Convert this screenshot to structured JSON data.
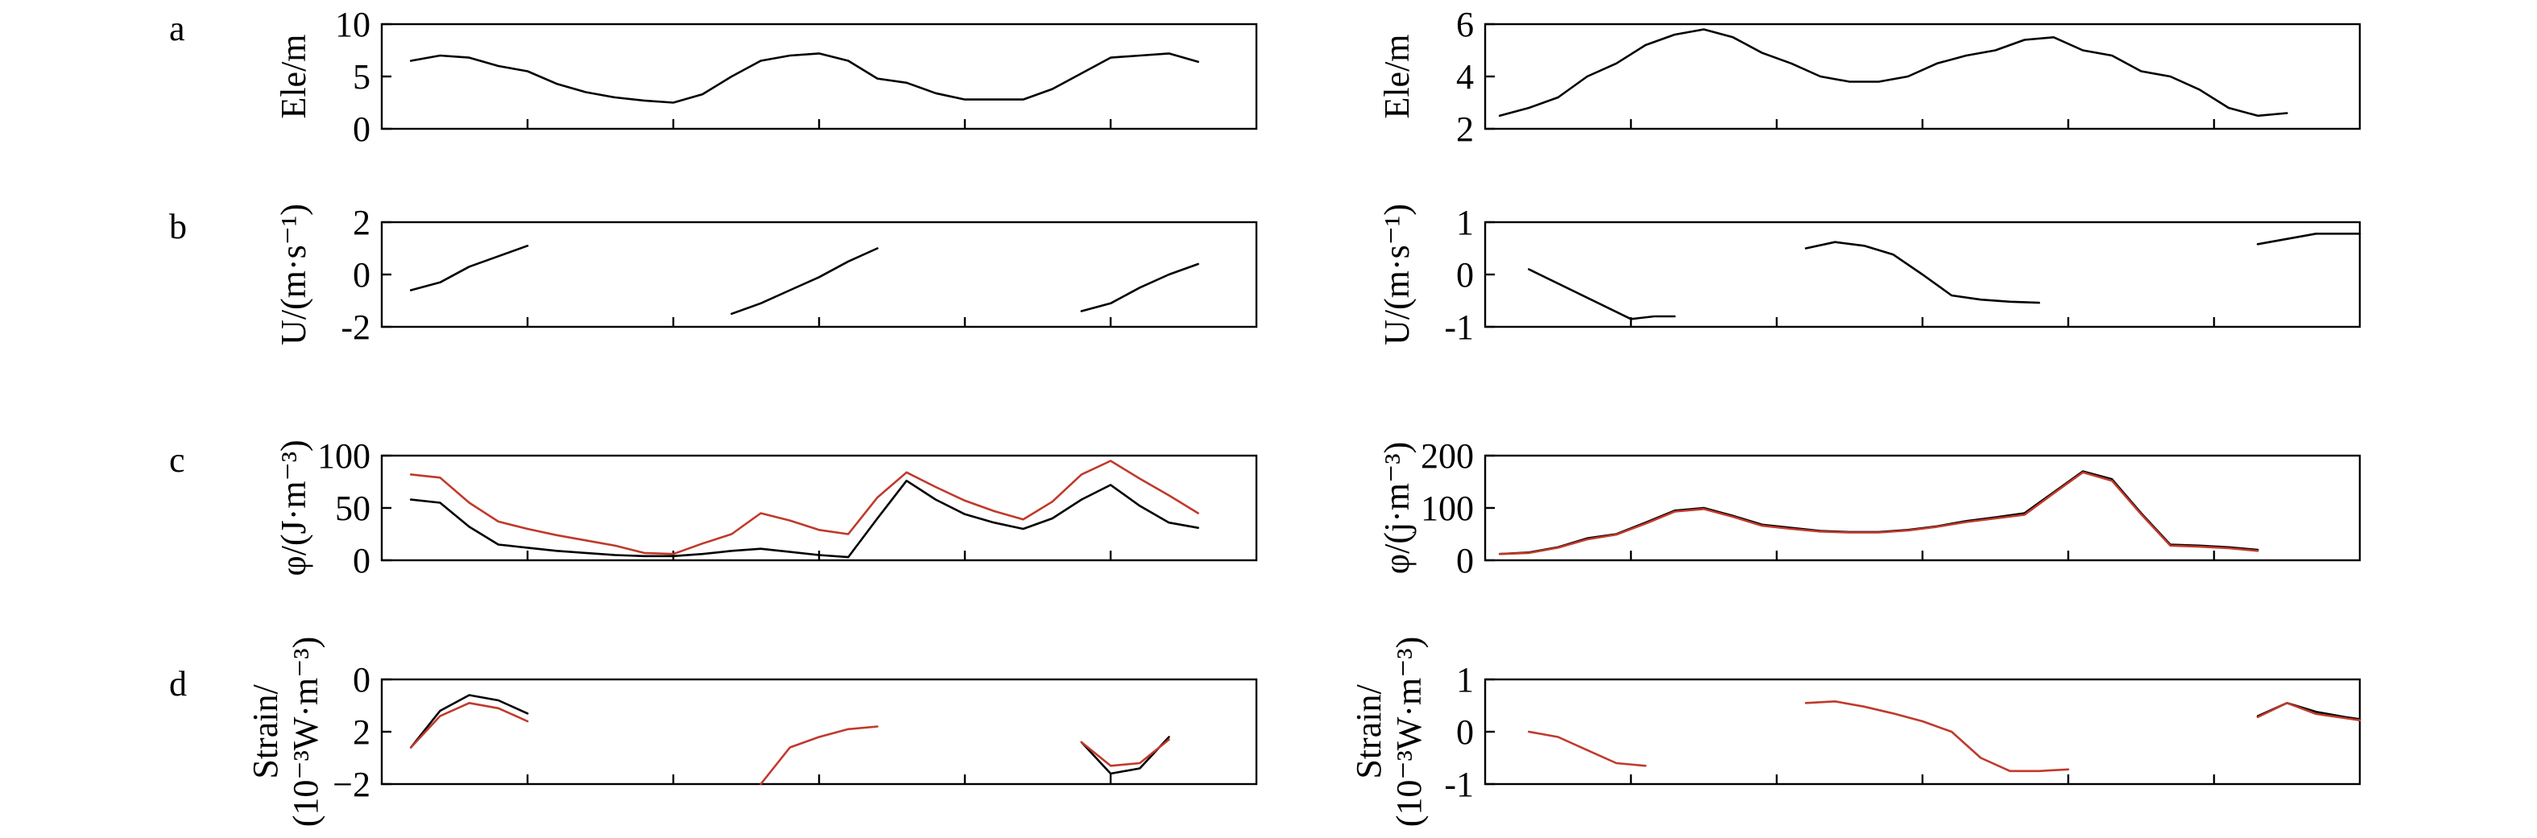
{
  "colors": {
    "black": "#000000",
    "red": "#c0392b"
  },
  "panel_letters": [
    "a",
    "b",
    "c",
    "d"
  ],
  "chart_data": [
    {
      "type": "line",
      "row": 0,
      "col": 0,
      "letter": "a",
      "ylabel": "Ele/m",
      "ylim": [
        0,
        10
      ],
      "yticks": [
        0,
        5,
        10
      ],
      "xlim": [
        0,
        30
      ],
      "grid": false,
      "series": [
        {
          "color": "black",
          "x": [
            1,
            2,
            3,
            4,
            5,
            6,
            7,
            8,
            9,
            10,
            11,
            12,
            13,
            14,
            15,
            16,
            17,
            18,
            19,
            20,
            21,
            22,
            23,
            24,
            25,
            26,
            27,
            28
          ],
          "y": [
            6.5,
            7.0,
            6.8,
            6.0,
            5.5,
            4.3,
            3.5,
            3.0,
            2.7,
            2.5,
            3.3,
            5.0,
            6.5,
            7.0,
            7.2,
            6.5,
            4.8,
            4.4,
            3.4,
            2.8,
            2.8,
            2.8,
            3.8,
            5.3,
            6.8,
            7.0,
            7.2,
            6.4
          ]
        }
      ]
    },
    {
      "type": "line",
      "row": 0,
      "col": 1,
      "letter": "",
      "ylabel": "Ele/m",
      "ylim": [
        2,
        6
      ],
      "yticks": [
        2,
        4,
        6
      ],
      "xlim": [
        0,
        30
      ],
      "grid": false,
      "series": [
        {
          "color": "black",
          "x": [
            0.5,
            1.5,
            2.5,
            3.5,
            4.5,
            5.5,
            6.5,
            7.5,
            8.5,
            9.5,
            10.5,
            11.5,
            12.5,
            13.5,
            14.5,
            15.5,
            16.5,
            17.5,
            18.5,
            19.5,
            20.5,
            21.5,
            22.5,
            23.5,
            24.5,
            25.5,
            26.5,
            27.5,
            28.5
          ],
          "y": [
            2.5,
            2.8,
            3.2,
            4.0,
            4.5,
            5.2,
            5.6,
            5.8,
            5.5,
            4.9,
            4.5,
            4.0,
            3.8,
            3.8,
            4.0,
            4.5,
            4.8,
            5.0,
            5.4,
            5.5,
            5.0,
            4.8,
            4.2,
            4.0,
            3.5,
            2.8,
            2.5,
            2.6,
            null
          ]
        }
      ]
    },
    {
      "type": "line",
      "row": 1,
      "col": 0,
      "letter": "b",
      "ylabel": "U/(m·s⁻¹)",
      "ylim": [
        -2,
        2
      ],
      "yticks": [
        -2,
        0,
        2
      ],
      "xlim": [
        0,
        30
      ],
      "grid": false,
      "series": [
        {
          "color": "black",
          "x": [
            1,
            2,
            3,
            4,
            5
          ],
          "y": [
            -0.6,
            -0.3,
            0.3,
            0.7,
            1.1
          ]
        },
        {
          "color": "black",
          "x": [
            12,
            13,
            14,
            15,
            16,
            17
          ],
          "y": [
            -1.5,
            -1.1,
            -0.6,
            -0.1,
            0.5,
            1.0
          ]
        },
        {
          "color": "black",
          "x": [
            24,
            25,
            26,
            27,
            28
          ],
          "y": [
            -1.4,
            -1.1,
            -0.5,
            0.0,
            0.4
          ]
        }
      ]
    },
    {
      "type": "line",
      "row": 1,
      "col": 1,
      "letter": "",
      "ylabel": "U/(m·s⁻¹)",
      "ylim": [
        -1,
        1
      ],
      "yticks": [
        -1,
        0,
        1
      ],
      "xlim": [
        0,
        30
      ],
      "grid": false,
      "series": [
        {
          "color": "black",
          "x": [
            1.5,
            5,
            5.8,
            6.5
          ],
          "y": [
            0.1,
            -0.85,
            -0.8,
            -0.8
          ]
        },
        {
          "color": "black",
          "x": [
            11,
            12,
            13,
            14,
            15,
            16,
            17,
            18,
            19,
            20
          ],
          "y": [
            0.5,
            0.62,
            0.55,
            0.38,
            0.0,
            -0.4,
            -0.48,
            -0.52,
            -0.54,
            null
          ]
        },
        {
          "color": "black",
          "x": [
            26.5,
            27.5,
            28.5,
            29.5,
            30
          ],
          "y": [
            0.58,
            0.68,
            0.78,
            0.78,
            0.78
          ]
        }
      ]
    },
    {
      "type": "line",
      "row": 2,
      "col": 0,
      "letter": "c",
      "ylabel": "φ/(J·m⁻³)",
      "ylim": [
        0,
        100
      ],
      "yticks": [
        0,
        50,
        100
      ],
      "xlim": [
        0,
        30
      ],
      "grid": false,
      "series": [
        {
          "color": "black",
          "x": [
            1,
            2,
            3,
            4,
            5,
            6,
            7,
            8,
            9,
            10,
            11,
            12,
            13,
            14,
            15,
            16,
            17,
            18,
            19,
            20,
            21,
            22,
            23,
            24,
            25,
            26,
            27,
            28
          ],
          "y": [
            58,
            55,
            32,
            15,
            12,
            9,
            7,
            5,
            4,
            4,
            6,
            9,
            11,
            8,
            5,
            3,
            40,
            76,
            58,
            44,
            36,
            30,
            40,
            58,
            72,
            52,
            36,
            31
          ]
        },
        {
          "color": "red",
          "x": [
            1,
            2,
            3,
            4,
            5,
            6,
            7,
            8,
            9,
            10,
            11,
            12,
            13,
            14,
            15,
            16,
            17,
            18,
            19,
            20,
            21,
            22,
            23,
            24,
            25,
            26,
            27,
            28
          ],
          "y": [
            82,
            79,
            55,
            37,
            30,
            24,
            19,
            14,
            7,
            6,
            16,
            25,
            45,
            38,
            29,
            25,
            60,
            84,
            70,
            57,
            47,
            39,
            56,
            82,
            95,
            78,
            62,
            45
          ]
        }
      ]
    },
    {
      "type": "line",
      "row": 2,
      "col": 1,
      "letter": "",
      "ylabel": "φ/(j·m⁻³)",
      "ylim": [
        0,
        200
      ],
      "yticks": [
        0,
        100,
        200
      ],
      "xlim": [
        0,
        30
      ],
      "grid": false,
      "series": [
        {
          "color": "black",
          "x": [
            0.5,
            1.5,
            2.5,
            3.5,
            4.5,
            5.5,
            6.5,
            7.5,
            8.5,
            9.5,
            10.5,
            11.5,
            12.5,
            13.5,
            14.5,
            15.5,
            16.5,
            17.5,
            18.5,
            19.5,
            20.5,
            21.5,
            22.5,
            23.5,
            24.5,
            25.5,
            26.5
          ],
          "y": [
            12,
            15,
            25,
            42,
            50,
            72,
            95,
            100,
            85,
            68,
            62,
            56,
            54,
            54,
            58,
            65,
            75,
            82,
            90,
            130,
            170,
            155,
            90,
            30,
            28,
            25,
            20
          ]
        },
        {
          "color": "red",
          "x": [
            0.5,
            1.5,
            2.5,
            3.5,
            4.5,
            5.5,
            6.5,
            7.5,
            8.5,
            9.5,
            10.5,
            11.5,
            12.5,
            13.5,
            14.5,
            15.5,
            16.5,
            17.5,
            18.5,
            19.5,
            20.5,
            21.5,
            22.5,
            23.5,
            24.5,
            25.5,
            26.5
          ],
          "y": [
            12,
            14,
            24,
            40,
            49,
            70,
            93,
            98,
            83,
            66,
            60,
            55,
            53,
            53,
            57,
            64,
            73,
            80,
            87,
            128,
            168,
            152,
            88,
            28,
            26,
            23,
            18
          ]
        }
      ]
    },
    {
      "type": "line",
      "row": 3,
      "col": 0,
      "letter": "d",
      "ylabel": "Strain/ (10⁻³W·m⁻³)",
      "ylim": [
        -2,
        0
      ],
      "yticks": [
        0,
        2,
        -2
      ],
      "ytick_labels": [
        "0",
        "2",
        "−2"
      ],
      "xlim": [
        0,
        30
      ],
      "grid": false,
      "series": [
        {
          "color": "black",
          "x": [
            1,
            2,
            3,
            4,
            5
          ],
          "y": [
            -1.3,
            -0.6,
            -0.3,
            -0.4,
            -0.65
          ]
        },
        {
          "color": "red",
          "x": [
            1,
            2,
            3,
            4,
            5
          ],
          "y": [
            -1.3,
            -0.7,
            -0.45,
            -0.55,
            -0.8
          ]
        },
        {
          "color": "red",
          "x": [
            13,
            14,
            15,
            16,
            17
          ],
          "y": [
            -2,
            -1.3,
            -1.1,
            -0.95,
            -0.9
          ]
        },
        {
          "color": "black",
          "x": [
            24,
            25,
            26,
            27
          ],
          "y": [
            -1.2,
            -1.8,
            -1.7,
            -1.1
          ]
        },
        {
          "color": "red",
          "x": [
            24,
            25,
            26,
            27
          ],
          "y": [
            -1.2,
            -1.65,
            -1.6,
            -1.15
          ]
        }
      ]
    },
    {
      "type": "line",
      "row": 3,
      "col": 1,
      "letter": "",
      "ylabel": "Strain/ (10⁻³W·m⁻³)",
      "ylim": [
        -1,
        1
      ],
      "yticks": [
        1,
        0,
        -1
      ],
      "xlim": [
        0,
        30
      ],
      "grid": false,
      "series": [
        {
          "color": "red",
          "x": [
            1.5,
            2.5,
            3.5,
            4.5,
            5.5,
            6.5
          ],
          "y": [
            0.0,
            -0.1,
            -0.35,
            -0.6,
            -0.65,
            null
          ]
        },
        {
          "color": "red",
          "x": [
            11,
            12,
            13,
            14,
            15,
            16,
            17,
            18,
            19,
            20
          ],
          "y": [
            0.55,
            0.58,
            0.48,
            0.35,
            0.2,
            0.0,
            -0.5,
            -0.75,
            -0.75,
            -0.72
          ]
        },
        {
          "color": "black",
          "x": [
            26.5,
            27.5,
            28.5,
            29.5,
            30
          ],
          "y": [
            0.3,
            0.55,
            0.38,
            0.28,
            0.24
          ]
        },
        {
          "color": "red",
          "x": [
            26.5,
            27.5,
            28.5,
            29.5,
            30
          ],
          "y": [
            0.28,
            0.55,
            0.34,
            0.26,
            0.22
          ]
        }
      ]
    }
  ]
}
